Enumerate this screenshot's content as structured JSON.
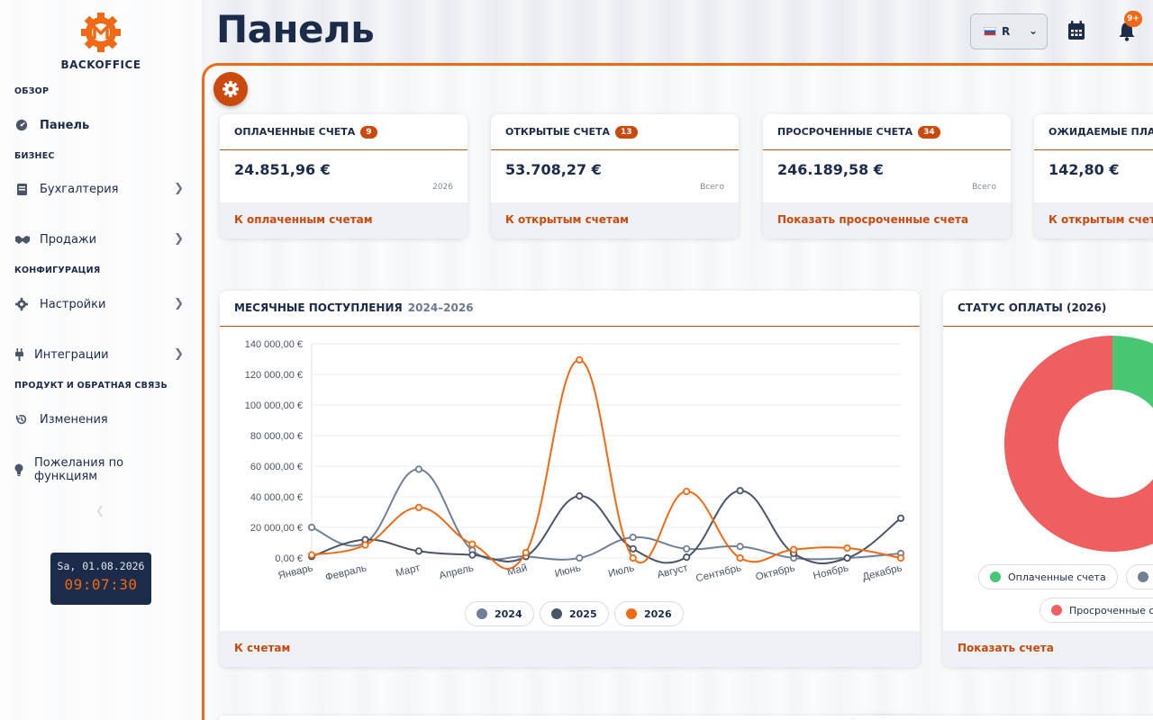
{
  "app": {
    "logo_text": "BACKOFFICE"
  },
  "sidebar": {
    "sections": [
      {
        "title": "ОБЗОР"
      },
      {
        "title": "БИЗНЕС"
      },
      {
        "title": "КОНФИГУРАЦИЯ"
      },
      {
        "title": "ПРОДУКТ И ОБРАТНАЯ СВЯЗЬ"
      }
    ],
    "items": [
      {
        "label": "Панель",
        "icon": "dashboard-icon",
        "active": true
      },
      {
        "label": "Бухгалтерия",
        "icon": "book-icon"
      },
      {
        "label": "Продажи",
        "icon": "handshake-icon"
      },
      {
        "label": "Настройки",
        "icon": "gear-icon"
      },
      {
        "label": "Интеграции",
        "icon": "plug-icon"
      },
      {
        "label": "Изменения",
        "icon": "history-icon"
      },
      {
        "label": "Пожелания по функциям",
        "icon": "lightbulb-icon"
      }
    ],
    "clock": {
      "date": "Sa, 01.08.2026",
      "time": "09:07:30"
    }
  },
  "header": {
    "title": "Панель",
    "language": "R",
    "notifications": "9+"
  },
  "cards": [
    {
      "title": "ОПЛАЧЕННЫЕ СЧЕТА",
      "count": "9",
      "value": "24.851,96 €",
      "sub": "2026",
      "link": "К оплаченным счетам"
    },
    {
      "title": "ОТКРЫТЫЕ СЧЕТА",
      "count": "13",
      "value": "53.708,27 €",
      "sub": "Всего",
      "link": "К открытым счетам"
    },
    {
      "title": "ПРОСРОЧЕННЫЕ СЧЕТА",
      "count": "34",
      "value": "246.189,58 €",
      "sub": "Всего",
      "link": "Показать просроченные счета"
    },
    {
      "title": "ОЖИДАЕМЫЕ ПЛАТЕЖ",
      "count": "",
      "value": "142,80 €",
      "sub": "",
      "link": "К открытым счетам"
    }
  ],
  "revenue_panel": {
    "title": "МЕСЯЧНЫЕ ПОСТУПЛЕНИЯ",
    "range": "2024–2026",
    "link": "К счетам"
  },
  "status_panel": {
    "title": "СТАТУС ОПЛАТЫ (2026)",
    "link": "Показать счета",
    "legend": [
      "Оплаченные счета",
      "Просроченные с"
    ]
  },
  "colors": {
    "accent": "#c94a0c",
    "orange": "#f06a16",
    "navy": "#1c2b4a",
    "s2024": "#718096",
    "s2025": "#4a5568",
    "s2026": "#f06a16",
    "paid": "#48c774",
    "overdue": "#ef5f5f"
  },
  "chart_data": [
    {
      "type": "line",
      "categories": [
        "Январь",
        "Февраль",
        "Март",
        "Апрель",
        "Май",
        "Июнь",
        "Июль",
        "Август",
        "Сентябрь",
        "Октябрь",
        "Ноябрь",
        "Декабрь"
      ],
      "yticks": [
        "140 000,00 €",
        "120 000,00 €",
        "100 000,00 €",
        "80 000,00 €",
        "60 000,00 €",
        "40 000,00 €",
        "20 000,00 €",
        "0,00 €"
      ],
      "ylim": [
        0,
        140000
      ],
      "series": [
        {
          "name": "2024",
          "values": [
            20000,
            10000,
            58000,
            5000,
            1000,
            0,
            13500,
            6000,
            7500,
            0,
            0,
            3000
          ]
        },
        {
          "name": "2025",
          "values": [
            1000,
            12000,
            4500,
            2000,
            1000,
            40500,
            6000,
            500,
            44000,
            3000,
            0,
            26000
          ]
        },
        {
          "name": "2026",
          "values": [
            2000,
            8500,
            33000,
            9000,
            3500,
            129500,
            0,
            43500,
            0,
            5500,
            6500,
            0
          ]
        }
      ],
      "legend": "bottom"
    },
    {
      "type": "pie",
      "title": "СТАТУС ОПЛАТЫ (2026)",
      "categories": [
        "Оплаченные счета",
        "Просроченные с"
      ],
      "values": [
        9,
        34
      ]
    }
  ]
}
